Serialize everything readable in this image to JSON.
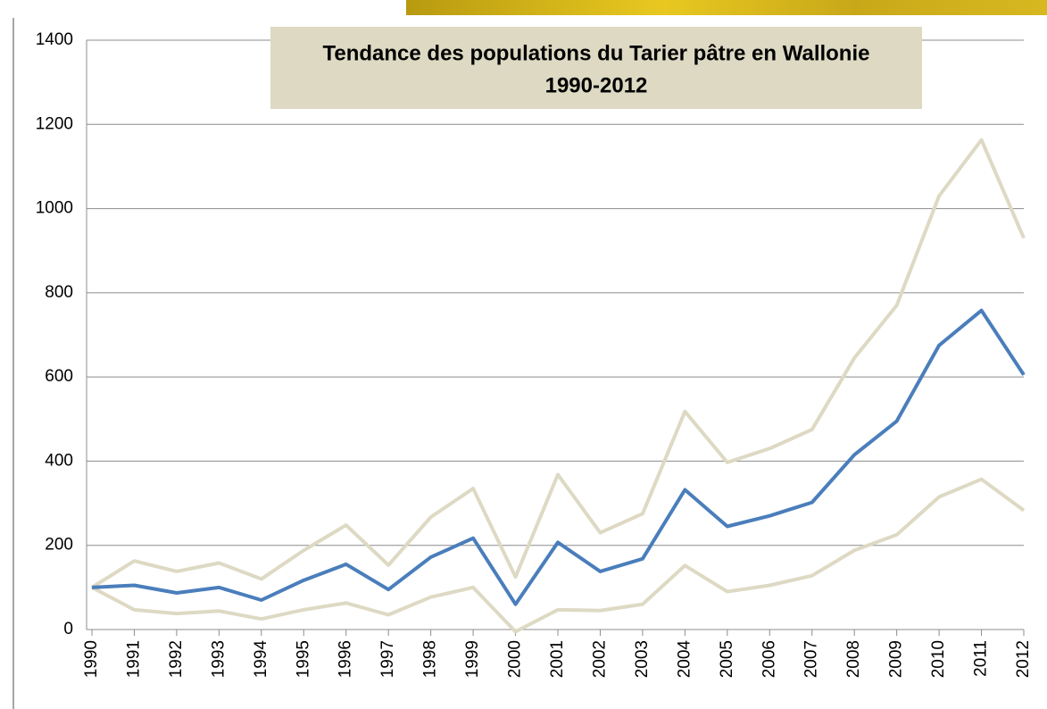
{
  "chart_data": {
    "type": "line",
    "title": "Tendance des populations du Tarier pâtre en Wallonie",
    "subtitle": "1990-2012",
    "categories": [
      "1990",
      "1991",
      "1992",
      "1993",
      "1994",
      "1995",
      "1996",
      "1997",
      "1998",
      "1999",
      "2000",
      "2001",
      "2002",
      "2003",
      "2004",
      "2005",
      "2006",
      "2007",
      "2008",
      "2009",
      "2010",
      "2011",
      "2012"
    ],
    "series": [
      {
        "color": "#ddd9c3",
        "values": [
          100,
          163,
          138,
          158,
          120,
          188,
          248,
          153,
          267,
          335,
          125,
          368,
          230,
          275,
          518,
          397,
          430,
          475,
          645,
          770,
          1030,
          1163,
          930
        ]
      },
      {
        "color": "#ddd9c3",
        "values": [
          100,
          47,
          38,
          44,
          25,
          47,
          63,
          35,
          77,
          100,
          -5,
          47,
          45,
          60,
          152,
          90,
          105,
          128,
          188,
          225,
          315,
          357,
          283
        ]
      },
      {
        "color": "#4a7ebb",
        "values": [
          100,
          105,
          87,
          100,
          70,
          117,
          155,
          95,
          172,
          217,
          60,
          207,
          138,
          168,
          332,
          245,
          270,
          302,
          415,
          495,
          675,
          758,
          605
        ]
      }
    ],
    "ylim": [
      0,
      1400
    ],
    "yticks": [
      0,
      200,
      400,
      600,
      800,
      1000,
      1200,
      1400
    ],
    "grid": true
  }
}
